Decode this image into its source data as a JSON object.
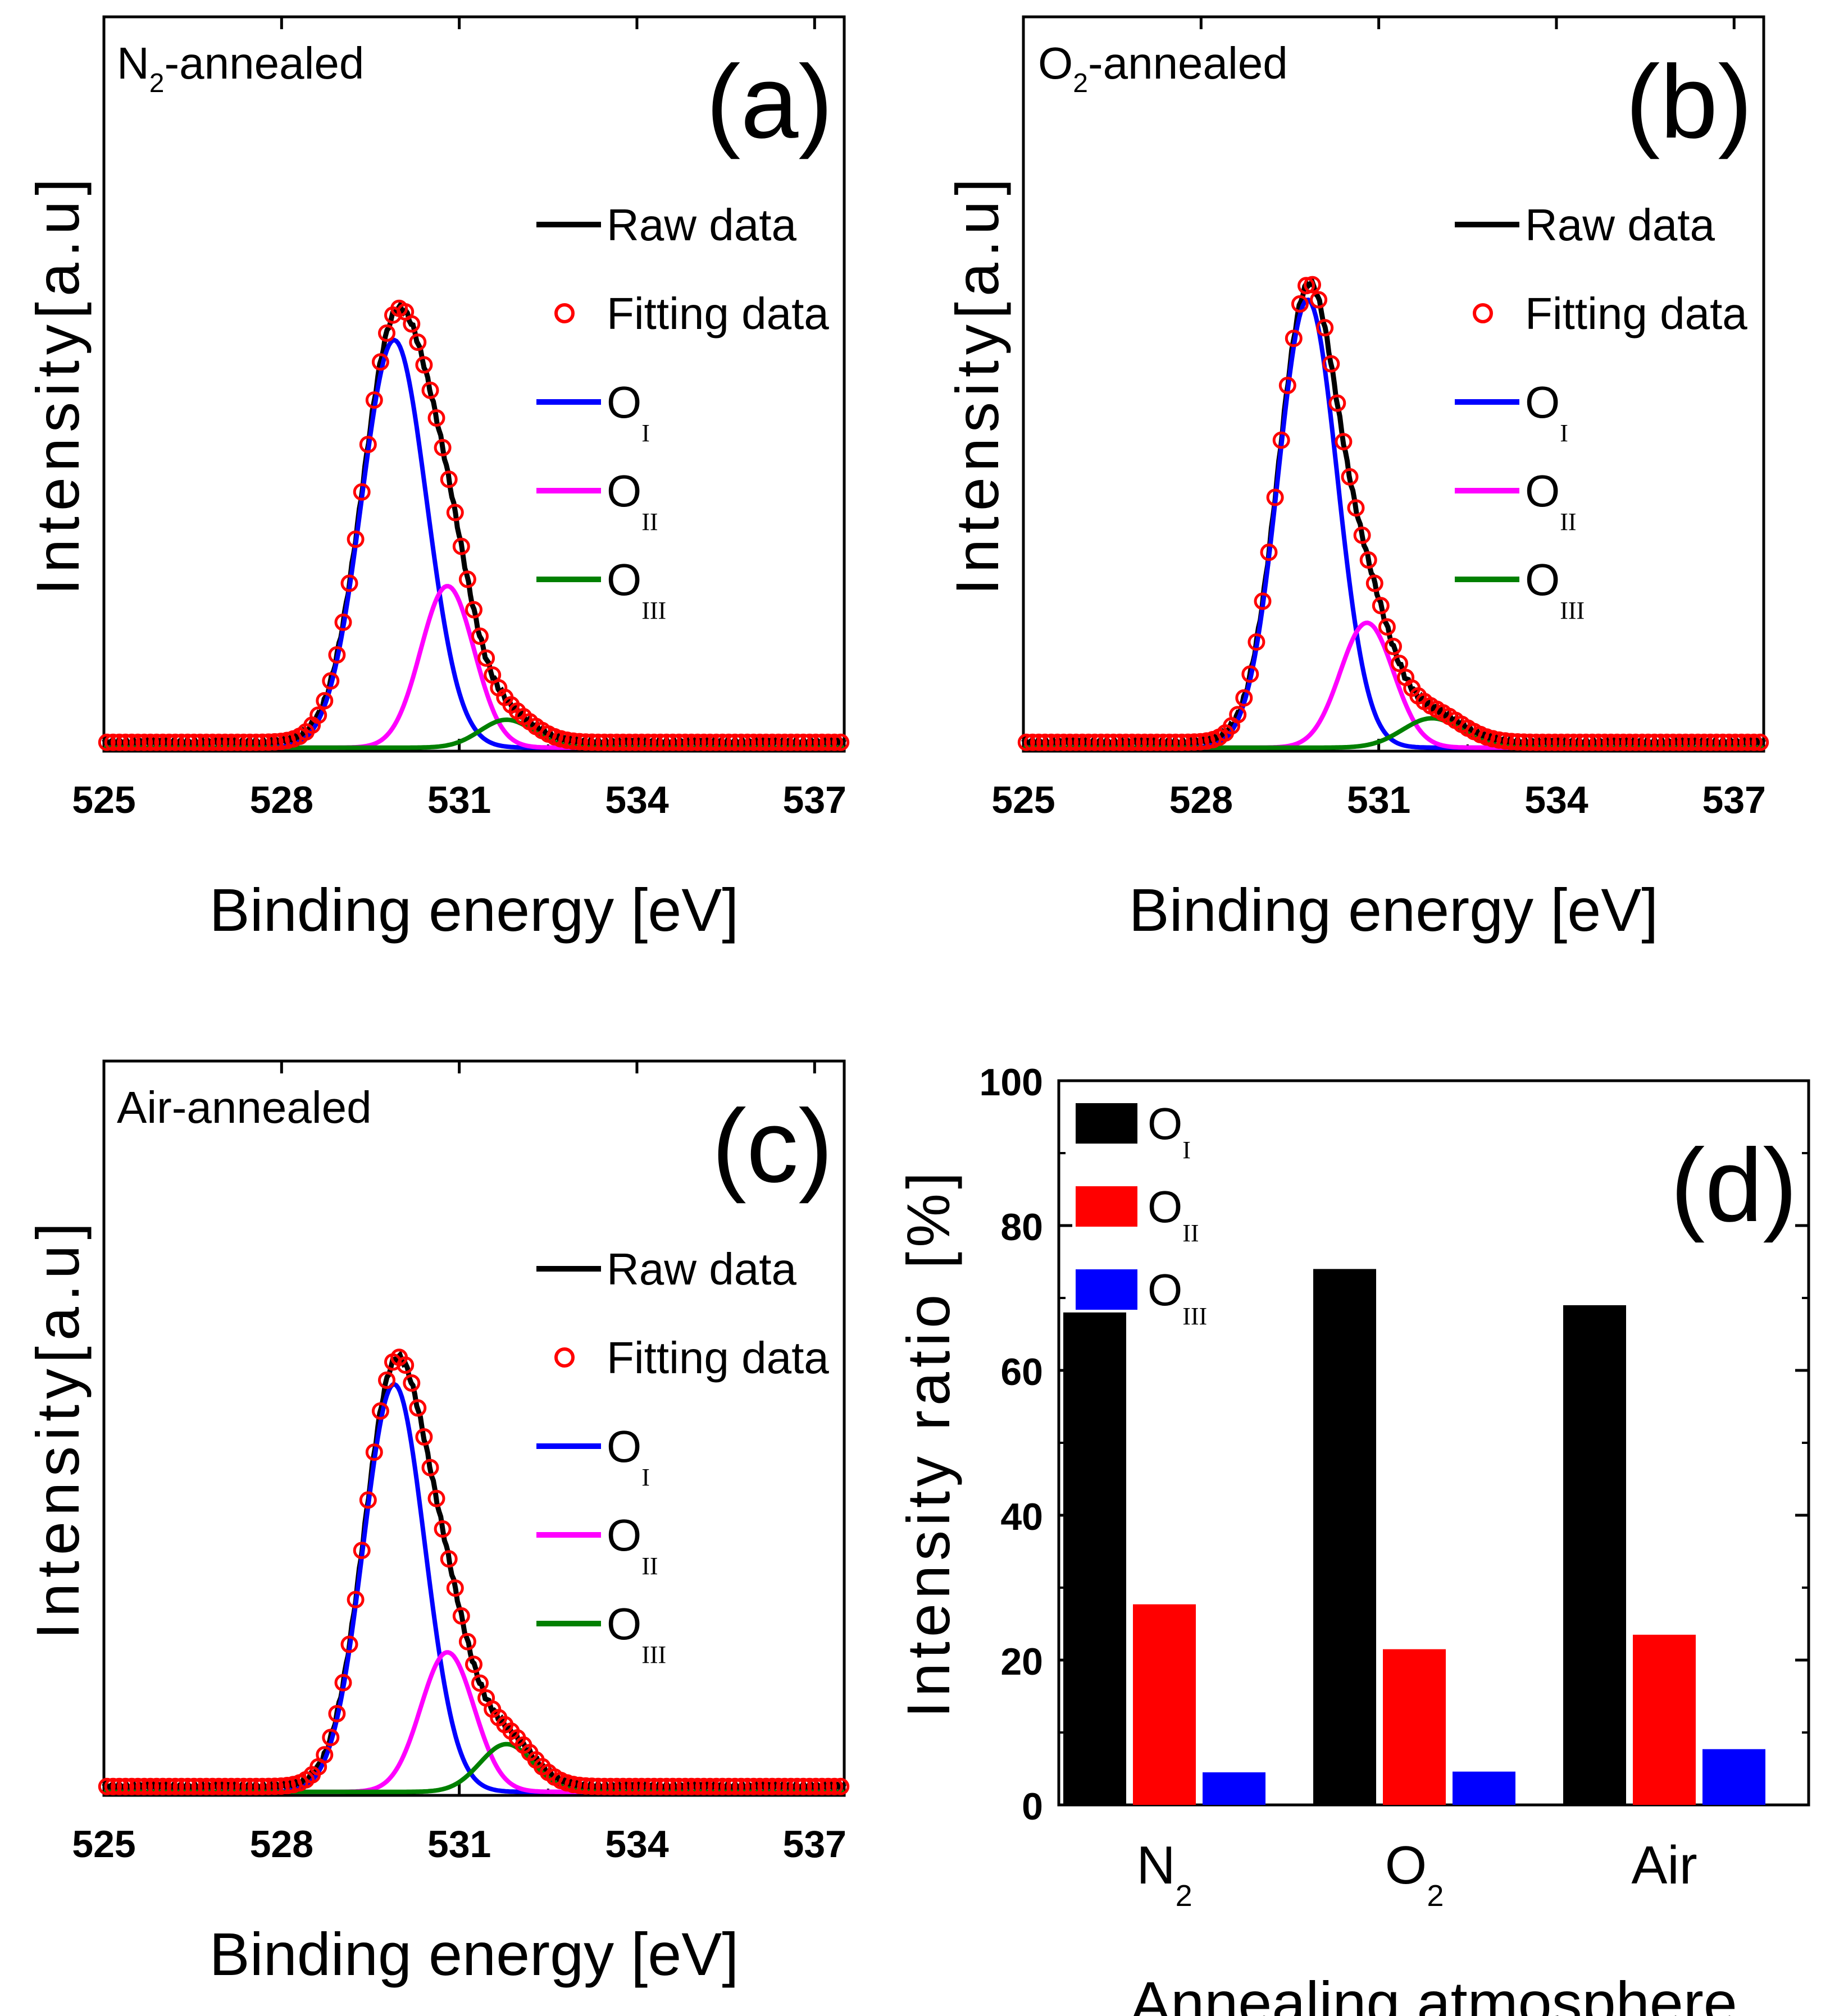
{
  "chart_data": [
    {
      "id": "a",
      "type": "line",
      "panel_letter": "(a)",
      "corner_label": "N",
      "corner_sub": "2",
      "corner_rest": "-annealed",
      "xlabel": "Binding energy [eV]",
      "ylabel": "Intensity[a.u]",
      "xlim": [
        525,
        537.5
      ],
      "ylim": [
        0,
        1
      ],
      "x_ticks": [
        "525",
        "528",
        "531",
        "534",
        "537"
      ],
      "legend": [
        {
          "label": "Raw data",
          "sub": "",
          "style": "line",
          "color": "#000000"
        },
        {
          "label": "Fitting data",
          "sub": "",
          "style": "circle",
          "color": "#ff0000"
        },
        {
          "label": "O",
          "sub": "I",
          "style": "line",
          "color": "#0000ff"
        },
        {
          "label": "O",
          "sub": "II",
          "style": "line",
          "color": "#ff00ff"
        },
        {
          "label": "O",
          "sub": "III",
          "style": "line",
          "color": "#008000"
        }
      ],
      "baseline": 0.012,
      "peaks": [
        {
          "name": "O_I",
          "center": 529.9,
          "height": 0.555,
          "sigma": 0.55,
          "color": "#0000ff"
        },
        {
          "name": "O_II",
          "center": 530.8,
          "height": 0.22,
          "sigma": 0.45,
          "color": "#ff00ff"
        },
        {
          "name": "O_III",
          "center": 531.8,
          "height": 0.038,
          "sigma": 0.45,
          "color": "#008000"
        }
      ]
    },
    {
      "id": "b",
      "type": "line",
      "panel_letter": "(b)",
      "corner_label": "O",
      "corner_sub": "2",
      "corner_rest": "-annealed",
      "xlabel": "Binding energy [eV]",
      "ylabel": "Intensity[a.u]",
      "xlim": [
        525,
        537.5
      ],
      "ylim": [
        0,
        1
      ],
      "x_ticks": [
        "525",
        "528",
        "531",
        "534",
        "537"
      ],
      "legend": [
        {
          "label": "Raw data",
          "sub": "",
          "style": "line",
          "color": "#000000"
        },
        {
          "label": "Fitting data",
          "sub": "",
          "style": "circle",
          "color": "#ff0000"
        },
        {
          "label": "O",
          "sub": "I",
          "style": "line",
          "color": "#0000ff"
        },
        {
          "label": "O",
          "sub": "II",
          "style": "line",
          "color": "#ff00ff"
        },
        {
          "label": "O",
          "sub": "III",
          "style": "line",
          "color": "#008000"
        }
      ],
      "baseline": 0.012,
      "peaks": [
        {
          "name": "O_I",
          "center": 529.8,
          "height": 0.61,
          "sigma": 0.5,
          "color": "#0000ff"
        },
        {
          "name": "O_II",
          "center": 530.8,
          "height": 0.17,
          "sigma": 0.45,
          "color": "#ff00ff"
        },
        {
          "name": "O_III",
          "center": 531.9,
          "height": 0.04,
          "sigma": 0.5,
          "color": "#008000"
        }
      ]
    },
    {
      "id": "c",
      "type": "line",
      "panel_letter": "(c)",
      "corner_label": "Air-annealed",
      "corner_sub": "",
      "corner_rest": "",
      "xlabel": "Binding energy [eV]",
      "ylabel": "Intensity[a.u]",
      "xlim": [
        525,
        537.5
      ],
      "ylim": [
        0,
        1
      ],
      "x_ticks": [
        "525",
        "528",
        "531",
        "534",
        "537"
      ],
      "legend": [
        {
          "label": "Raw data",
          "sub": "",
          "style": "line",
          "color": "#000000"
        },
        {
          "label": "Fitting data",
          "sub": "",
          "style": "circle",
          "color": "#ff0000"
        },
        {
          "label": "O",
          "sub": "I",
          "style": "line",
          "color": "#0000ff"
        },
        {
          "label": "O",
          "sub": "II",
          "style": "line",
          "color": "#ff00ff"
        },
        {
          "label": "O",
          "sub": "III",
          "style": "line",
          "color": "#008000"
        }
      ],
      "baseline": 0.012,
      "peaks": [
        {
          "name": "O_I",
          "center": 529.9,
          "height": 0.555,
          "sigma": 0.52,
          "color": "#0000ff"
        },
        {
          "name": "O_II",
          "center": 530.8,
          "height": 0.19,
          "sigma": 0.45,
          "color": "#ff00ff"
        },
        {
          "name": "O_III",
          "center": 531.8,
          "height": 0.065,
          "sigma": 0.45,
          "color": "#008000"
        }
      ]
    },
    {
      "id": "d",
      "type": "bar",
      "panel_letter": "(d)",
      "xlabel": "Annealing atmosphere",
      "ylabel": "Intensity ratio [%]",
      "ylim": [
        0,
        100
      ],
      "y_ticks": [
        "0",
        "20",
        "40",
        "60",
        "80",
        "100"
      ],
      "categories": [
        {
          "label": "N",
          "sub": "2"
        },
        {
          "label": "O",
          "sub": "2"
        },
        {
          "label": "Air",
          "sub": ""
        }
      ],
      "series": [
        {
          "name": "O",
          "sub": "I",
          "color": "#000000",
          "values": [
            68,
            74,
            69
          ]
        },
        {
          "name": "O",
          "sub": "II",
          "color": "#ff0000",
          "values": [
            27.7,
            21.5,
            23.5
          ]
        },
        {
          "name": "O",
          "sub": "III",
          "color": "#0000ff",
          "values": [
            4.5,
            4.6,
            7.7
          ]
        }
      ]
    }
  ]
}
